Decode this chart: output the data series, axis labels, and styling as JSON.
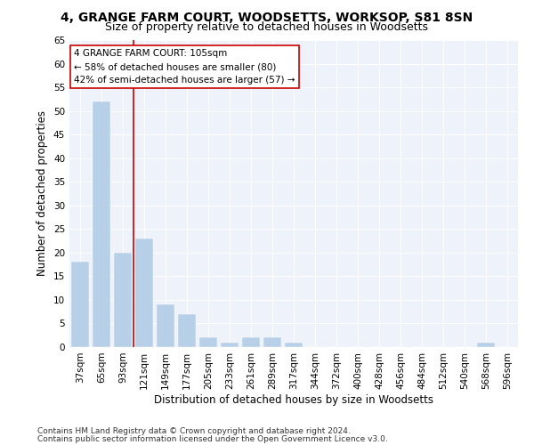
{
  "title": "4, GRANGE FARM COURT, WOODSETTS, WORKSOP, S81 8SN",
  "subtitle": "Size of property relative to detached houses in Woodsetts",
  "xlabel": "Distribution of detached houses by size in Woodsetts",
  "ylabel": "Number of detached properties",
  "categories": [
    "37sqm",
    "65sqm",
    "93sqm",
    "121sqm",
    "149sqm",
    "177sqm",
    "205sqm",
    "233sqm",
    "261sqm",
    "289sqm",
    "317sqm",
    "344sqm",
    "372sqm",
    "400sqm",
    "428sqm",
    "456sqm",
    "484sqm",
    "512sqm",
    "540sqm",
    "568sqm",
    "596sqm"
  ],
  "values": [
    18,
    52,
    20,
    23,
    9,
    7,
    2,
    1,
    2,
    2,
    1,
    0,
    0,
    0,
    0,
    0,
    0,
    0,
    0,
    1,
    0
  ],
  "bar_color": "#b8cfe8",
  "bar_edge_color": "#b8cfe8",
  "vline_x": 2.5,
  "vline_color": "#cc0000",
  "annotation_title": "4 GRANGE FARM COURT: 105sqm",
  "annotation_line1": "← 58% of detached houses are smaller (80)",
  "annotation_line2": "42% of semi-detached houses are larger (57) →",
  "annotation_box_color": "#ffffff",
  "annotation_box_edge": "#cc0000",
  "ylim": [
    0,
    65
  ],
  "yticks": [
    0,
    5,
    10,
    15,
    20,
    25,
    30,
    35,
    40,
    45,
    50,
    55,
    60,
    65
  ],
  "bg_color": "#eef2fb",
  "footer1": "Contains HM Land Registry data © Crown copyright and database right 2024.",
  "footer2": "Contains public sector information licensed under the Open Government Licence v3.0.",
  "title_fontsize": 10,
  "subtitle_fontsize": 9,
  "xlabel_fontsize": 8.5,
  "ylabel_fontsize": 8.5,
  "tick_fontsize": 7.5,
  "footer_fontsize": 6.5
}
